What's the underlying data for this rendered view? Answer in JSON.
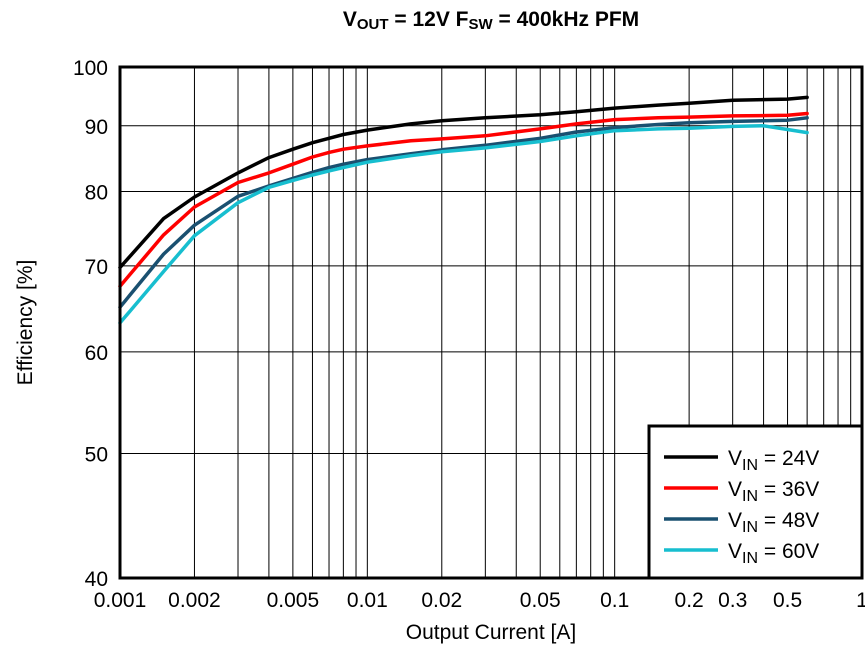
{
  "chart_data": {
    "type": "line",
    "title": {
      "parts": [
        {
          "text": "V",
          "sub": "OUT"
        },
        {
          "text": " = 12V F",
          "sub": "SW"
        },
        {
          "text": " = 400kHz PFM",
          "sub": ""
        }
      ]
    },
    "xlabel": "Output Current [A]",
    "ylabel": "Efficiency [%]",
    "x_scale": "log",
    "y_scale": "log",
    "xlim": [
      0.001,
      1
    ],
    "ylim": [
      40,
      100
    ],
    "x_tick_labels": [
      {
        "value": 0.001,
        "label": "0.001"
      },
      {
        "value": 0.002,
        "label": "0.002"
      },
      {
        "value": 0.005,
        "label": "0.005"
      },
      {
        "value": 0.01,
        "label": "0.01"
      },
      {
        "value": 0.02,
        "label": "0.02"
      },
      {
        "value": 0.05,
        "label": "0.05"
      },
      {
        "value": 0.1,
        "label": "0.1"
      },
      {
        "value": 0.2,
        "label": "0.2"
      },
      {
        "value": 0.3,
        "label": "0.3"
      },
      {
        "value": 0.5,
        "label": "0.5"
      },
      {
        "value": 1,
        "label": "1"
      }
    ],
    "y_tick_labels": [
      {
        "value": 40,
        "label": "40"
      },
      {
        "value": 50,
        "label": "50"
      },
      {
        "value": 60,
        "label": "60"
      },
      {
        "value": 70,
        "label": "70"
      },
      {
        "value": 80,
        "label": "80"
      },
      {
        "value": 90,
        "label": "90"
      },
      {
        "value": 100,
        "label": "100"
      }
    ],
    "grid": true,
    "legend_position": "bottom-right",
    "series": [
      {
        "name": "VIN = 24V",
        "label_main": "V",
        "label_sub": "IN",
        "label_rest": " = 24V",
        "color": "#000000",
        "x": [
          0.001,
          0.0015,
          0.002,
          0.003,
          0.004,
          0.005,
          0.006,
          0.007,
          0.008,
          0.01,
          0.015,
          0.02,
          0.03,
          0.05,
          0.07,
          0.1,
          0.15,
          0.2,
          0.3,
          0.5,
          0.6
        ],
        "y": [
          69.8,
          76.2,
          79.2,
          82.7,
          85.0,
          86.3,
          87.3,
          88.0,
          88.6,
          89.3,
          90.3,
          90.8,
          91.3,
          91.8,
          92.3,
          92.9,
          93.4,
          93.7,
          94.2,
          94.4,
          94.7
        ]
      },
      {
        "name": "VIN = 36V",
        "label_main": "V",
        "label_sub": "IN",
        "label_rest": " = 36V",
        "color": "#ff0000",
        "x": [
          0.001,
          0.0015,
          0.002,
          0.003,
          0.004,
          0.005,
          0.006,
          0.007,
          0.008,
          0.01,
          0.015,
          0.02,
          0.03,
          0.05,
          0.07,
          0.1,
          0.15,
          0.2,
          0.3,
          0.5,
          0.6
        ],
        "y": [
          67.5,
          74.0,
          77.8,
          81.3,
          82.7,
          84.0,
          85.1,
          85.8,
          86.3,
          86.8,
          87.6,
          87.9,
          88.4,
          89.5,
          90.3,
          91.0,
          91.3,
          91.4,
          91.6,
          91.7,
          92.0
        ]
      },
      {
        "name": "VIN = 48V",
        "label_main": "V",
        "label_sub": "IN",
        "label_rest": " = 48V",
        "color": "#1a5070",
        "x": [
          0.001,
          0.0015,
          0.002,
          0.003,
          0.004,
          0.005,
          0.006,
          0.007,
          0.008,
          0.01,
          0.015,
          0.02,
          0.03,
          0.05,
          0.07,
          0.1,
          0.15,
          0.2,
          0.3,
          0.5,
          0.6
        ],
        "y": [
          65.0,
          71.5,
          75.3,
          79.3,
          80.8,
          81.9,
          82.8,
          83.5,
          84.0,
          84.7,
          85.6,
          86.2,
          86.9,
          88.0,
          89.0,
          89.7,
          90.2,
          90.5,
          90.7,
          90.9,
          91.3
        ]
      },
      {
        "name": "VIN = 60V",
        "label_main": "V",
        "label_sub": "IN",
        "label_rest": " = 60V",
        "color": "#17becf",
        "x": [
          0.001,
          0.0015,
          0.002,
          0.003,
          0.004,
          0.005,
          0.006,
          0.007,
          0.008,
          0.01,
          0.015,
          0.02,
          0.03,
          0.05,
          0.07,
          0.1,
          0.15,
          0.2,
          0.3,
          0.4,
          0.5,
          0.6
        ],
        "y": [
          63.2,
          69.3,
          73.9,
          78.4,
          80.6,
          81.6,
          82.4,
          83.0,
          83.5,
          84.3,
          85.3,
          85.9,
          86.5,
          87.5,
          88.4,
          89.2,
          89.5,
          89.6,
          89.9,
          90.0,
          89.4,
          88.9
        ]
      }
    ]
  }
}
